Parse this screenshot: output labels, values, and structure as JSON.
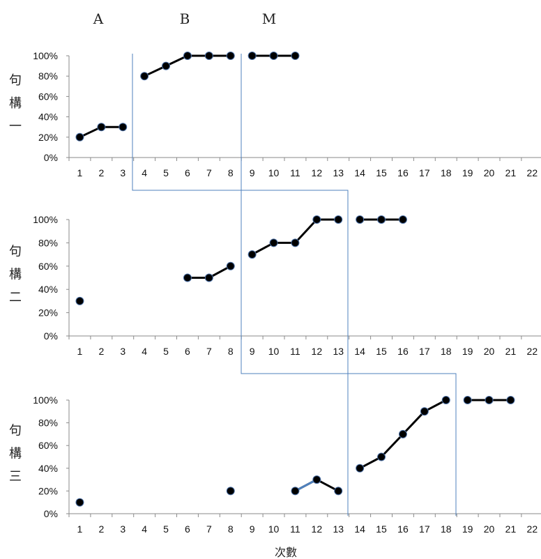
{
  "chart_data": {
    "type": "line",
    "xlabel": "次數",
    "x": [
      1,
      2,
      3,
      4,
      5,
      6,
      7,
      8,
      9,
      10,
      11,
      12,
      13,
      14,
      15,
      16,
      17,
      18,
      19,
      20,
      21,
      22
    ],
    "ylim": [
      0,
      100
    ],
    "yticks": [
      "0%",
      "20%",
      "40%",
      "60%",
      "80%",
      "100%"
    ],
    "phases": [
      "A",
      "B",
      "M"
    ],
    "line_color": "#000000",
    "marker_color": "#000000",
    "marker_edge_color": "#4a6fa5",
    "phase_line_color": "#4f81bd",
    "panels": [
      {
        "label": "句構一",
        "segments": [
          [
            [
              1,
              20
            ],
            [
              2,
              30
            ],
            [
              3,
              30
            ]
          ],
          [
            [
              4,
              80
            ],
            [
              5,
              90
            ],
            [
              6,
              100
            ],
            [
              7,
              100
            ],
            [
              8,
              100
            ]
          ],
          [
            [
              9,
              100
            ],
            [
              10,
              100
            ],
            [
              11,
              100
            ]
          ]
        ]
      },
      {
        "label": "句構二",
        "segments": [
          [
            [
              1,
              30
            ]
          ],
          [
            [
              6,
              50
            ],
            [
              7,
              50
            ],
            [
              8,
              60
            ]
          ],
          [
            [
              9,
              70
            ],
            [
              10,
              80
            ],
            [
              11,
              80
            ],
            [
              12,
              100
            ],
            [
              13,
              100
            ]
          ],
          [
            [
              14,
              100
            ],
            [
              15,
              100
            ],
            [
              16,
              100
            ]
          ]
        ]
      },
      {
        "label": "句構三",
        "segments": [
          [
            [
              1,
              10
            ]
          ],
          [
            [
              8,
              20
            ]
          ],
          [
            [
              11,
              20
            ],
            [
              12,
              30
            ],
            [
              13,
              20
            ]
          ],
          [
            [
              14,
              40
            ],
            [
              15,
              50
            ],
            [
              16,
              70
            ],
            [
              17,
              90
            ],
            [
              18,
              100
            ]
          ],
          [
            [
              19,
              100
            ],
            [
              20,
              100
            ],
            [
              21,
              100
            ]
          ]
        ],
        "highlight_segment": [
          [
            11,
            20
          ],
          [
            12,
            30
          ]
        ],
        "highlight_color": "#4f81bd"
      }
    ]
  }
}
